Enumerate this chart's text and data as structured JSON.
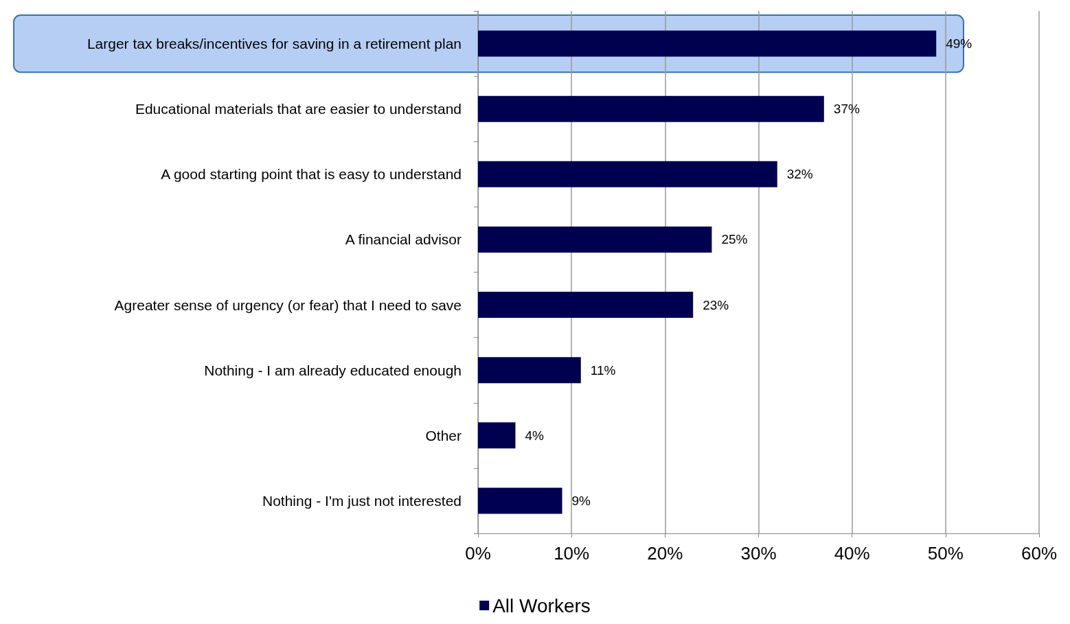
{
  "chart_data": {
    "type": "bar",
    "orientation": "horizontal",
    "categories": [
      "Larger tax breaks/incentives for saving in a retirement plan",
      "Educational materials that are easier to understand",
      "A good starting point that is easy to understand",
      "A financial advisor",
      "Agreater sense of urgency (or fear) that I need to save",
      "Nothing - I am already educated enough",
      "Other",
      "Nothing - I'm just not interested"
    ],
    "series": [
      {
        "name": "All Workers",
        "color": "#000050",
        "values": [
          49,
          37,
          32,
          25,
          23,
          11,
          4,
          9
        ],
        "value_labels": [
          "49%",
          "37%",
          "32%",
          "25%",
          "23%",
          "11%",
          "4%",
          "9%"
        ]
      }
    ],
    "xlim": [
      0,
      60
    ],
    "xticks": [
      {
        "value": 0,
        "label": "0%"
      },
      {
        "value": 10,
        "label": "10%"
      },
      {
        "value": 20,
        "label": "20%"
      },
      {
        "value": 30,
        "label": "30%"
      },
      {
        "value": 40,
        "label": "40%"
      },
      {
        "value": 50,
        "label": "50%"
      },
      {
        "value": 60,
        "label": "60%"
      }
    ],
    "bands": [
      {
        "axis": "y",
        "from": "Larger tax breaks/incentives for saving in a retirement plan",
        "to": "Larger tax breaks/incentives for saving in a retirement plan",
        "color": "#a9c6f2"
      }
    ],
    "grid": "x",
    "legend": "bottom"
  }
}
